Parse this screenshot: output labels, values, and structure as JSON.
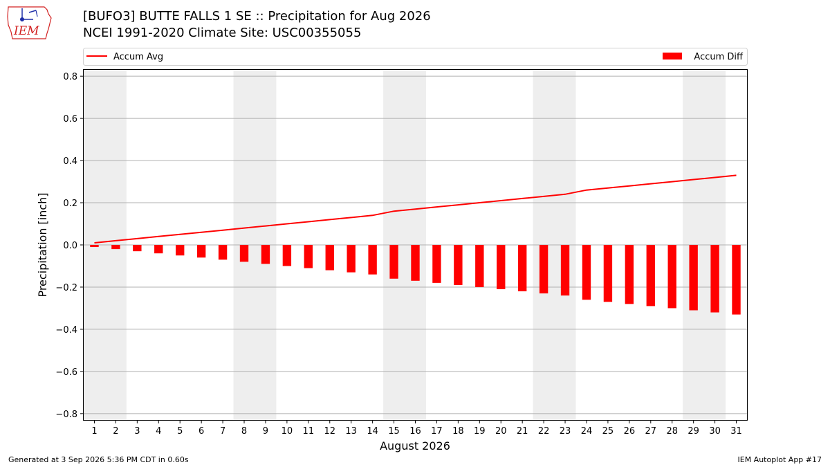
{
  "header": {
    "title_line1": "[BUFO3] BUTTE FALLS 1 SE :: Precipitation for Aug 2026",
    "title_line2": "NCEI 1991-2020 Climate Site: USC00355055",
    "logo_text": "IEM"
  },
  "footer": {
    "generated": "Generated at 3 Sep 2026 5:36 PM CDT in 0.60s",
    "app": "IEM Autoplot App #17"
  },
  "colors": {
    "series": "#ff0000",
    "weekend_shade": "#eeeeee",
    "grid": "#b0b0b0",
    "logo_red": "#d22020",
    "logo_blue": "#1f2fa8"
  },
  "chart_data": {
    "type": "bar",
    "xlabel": "August 2026",
    "ylabel": "Precipitation [inch]",
    "ylim": [
      -0.83,
      0.83
    ],
    "yticks": [
      0.8,
      0.6,
      0.4,
      0.2,
      0.0,
      -0.2,
      -0.4,
      -0.6,
      -0.8
    ],
    "ytick_labels": [
      "0.8",
      "0.6",
      "0.4",
      "0.2",
      "0.0",
      "−0.2",
      "−0.4",
      "−0.6",
      "−0.8"
    ],
    "xlim": [
      0.5,
      31.5
    ],
    "categories": [
      "1",
      "2",
      "3",
      "4",
      "5",
      "6",
      "7",
      "8",
      "9",
      "10",
      "11",
      "12",
      "13",
      "14",
      "15",
      "16",
      "17",
      "18",
      "19",
      "20",
      "21",
      "22",
      "23",
      "24",
      "25",
      "26",
      "27",
      "28",
      "29",
      "30",
      "31"
    ],
    "grid": "horizontal",
    "legend_placement": "top, above plot",
    "shaded_days": [
      [
        1,
        2
      ],
      [
        8,
        9
      ],
      [
        15,
        16
      ],
      [
        22,
        23
      ],
      [
        29,
        30
      ]
    ],
    "series": [
      {
        "name": "Accum Avg",
        "kind": "line",
        "values": [
          0.01,
          0.02,
          0.03,
          0.04,
          0.05,
          0.06,
          0.07,
          0.08,
          0.09,
          0.1,
          0.11,
          0.12,
          0.13,
          0.14,
          0.16,
          0.17,
          0.18,
          0.19,
          0.2,
          0.21,
          0.22,
          0.23,
          0.24,
          0.26,
          0.27,
          0.28,
          0.29,
          0.3,
          0.31,
          0.32,
          0.33
        ]
      },
      {
        "name": "Accum Diff",
        "kind": "bar",
        "values": [
          -0.01,
          -0.02,
          -0.03,
          -0.04,
          -0.05,
          -0.06,
          -0.07,
          -0.08,
          -0.09,
          -0.1,
          -0.11,
          -0.12,
          -0.13,
          -0.14,
          -0.16,
          -0.17,
          -0.18,
          -0.19,
          -0.2,
          -0.21,
          -0.22,
          -0.23,
          -0.24,
          -0.26,
          -0.27,
          -0.28,
          -0.29,
          -0.3,
          -0.31,
          -0.32,
          -0.33
        ]
      }
    ]
  }
}
